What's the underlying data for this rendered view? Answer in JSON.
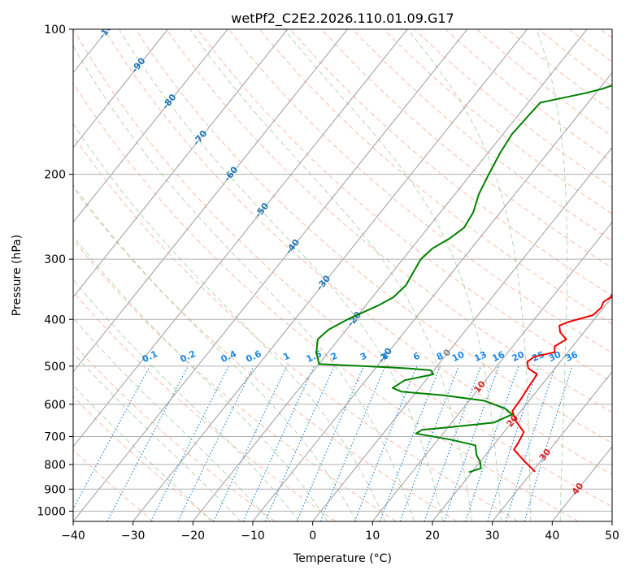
{
  "chart_data": {
    "type": "line",
    "title": "wetPf2_C2E2.2026.110.01.09.G17",
    "xlabel": "Temperature (°C)",
    "ylabel": "Pressure (hPa)",
    "xlim": [
      -40,
      50
    ],
    "ylim_hpa": [
      1050,
      100
    ],
    "x_ticks": [
      "−40",
      "−30",
      "−20",
      "−10",
      "0",
      "10",
      "20",
      "30",
      "40",
      "50"
    ],
    "x_tick_values": [
      -40,
      -30,
      -20,
      -10,
      0,
      10,
      20,
      30,
      40,
      50
    ],
    "y_ticks": [
      "100",
      "200",
      "300",
      "400",
      "500",
      "600",
      "700",
      "800",
      "900",
      "1000"
    ],
    "y_tick_values": [
      100,
      200,
      300,
      400,
      500,
      600,
      700,
      800,
      900,
      1000
    ],
    "grid": true,
    "colors": {
      "temperature": "#ee0000",
      "dewpoint": "#008000",
      "isotherm": "#9a9a9a",
      "dry_adiabat": "#ffa080",
      "moist_adiabat": "#80c080",
      "mixing_ratio": "#1e88e5",
      "zero_isotherm_label": "#808080",
      "warm_label": "#d62728",
      "cold_label": "#1f77b4",
      "mixing_label": "#1e88e5"
    },
    "series": [
      {
        "name": "Temperature",
        "points": [
          [
            1.5,
            100
          ],
          [
            -0.5,
            108
          ],
          [
            -3,
            118
          ],
          [
            -4,
            125
          ],
          [
            -3.8,
            135
          ],
          [
            -3.2,
            150
          ],
          [
            -2.5,
            160
          ],
          [
            0,
            175
          ],
          [
            3,
            190
          ],
          [
            5.5,
            205
          ],
          [
            8,
            225
          ],
          [
            10.5,
            245
          ],
          [
            12.5,
            265
          ],
          [
            14.5,
            288
          ],
          [
            16,
            308
          ],
          [
            17,
            322
          ],
          [
            18.5,
            337
          ],
          [
            19.5,
            350
          ],
          [
            19.8,
            360
          ],
          [
            19.2,
            368
          ],
          [
            19.6,
            378
          ],
          [
            19.2,
            392
          ],
          [
            16,
            405
          ],
          [
            15,
            412
          ],
          [
            16,
            425
          ],
          [
            18,
            440
          ],
          [
            17,
            455
          ],
          [
            17.8,
            468
          ],
          [
            15,
            478
          ],
          [
            14.5,
            490
          ],
          [
            15.5,
            505
          ],
          [
            17.8,
            520
          ],
          [
            18,
            545
          ],
          [
            18.4,
            585
          ],
          [
            18.6,
            620
          ],
          [
            20.5,
            650
          ],
          [
            23.3,
            685
          ],
          [
            23.8,
            720
          ],
          [
            24,
            745
          ],
          [
            27.5,
            790
          ],
          [
            30.5,
            828
          ]
        ]
      },
      {
        "name": "Dewpoint",
        "points": [
          [
            1.5,
            100
          ],
          [
            1,
            108
          ],
          [
            -1.5,
            118
          ],
          [
            -5,
            125
          ],
          [
            -9.5,
            133
          ],
          [
            -12,
            136
          ],
          [
            -16,
            140
          ],
          [
            -18,
            142
          ],
          [
            -18.2,
            150
          ],
          [
            -18.5,
            165
          ],
          [
            -18,
            180
          ],
          [
            -17,
            200
          ],
          [
            -16,
            220
          ],
          [
            -14.5,
            240
          ],
          [
            -14,
            258
          ],
          [
            -15,
            272
          ],
          [
            -16.5,
            285
          ],
          [
            -17,
            300
          ],
          [
            -16.5,
            320
          ],
          [
            -16,
            340
          ],
          [
            -16.5,
            360
          ],
          [
            -18,
            375
          ],
          [
            -21,
            398
          ],
          [
            -23,
            420
          ],
          [
            -23.5,
            440
          ],
          [
            -22,
            468
          ],
          [
            -20,
            495
          ],
          [
            -8,
            503
          ],
          [
            -4,
            506
          ],
          [
            -0.5,
            510
          ],
          [
            0.5,
            520
          ],
          [
            -3.5,
            535
          ],
          [
            -4.5,
            555
          ],
          [
            -2.5,
            565
          ],
          [
            5,
            575
          ],
          [
            12.5,
            590
          ],
          [
            17,
            612
          ],
          [
            19,
            630
          ],
          [
            17,
            655
          ],
          [
            10,
            670
          ],
          [
            6,
            678
          ],
          [
            5.5,
            690
          ],
          [
            12,
            710
          ],
          [
            17,
            730
          ],
          [
            18.5,
            765
          ],
          [
            20,
            790
          ],
          [
            21,
            815
          ],
          [
            20,
            825
          ],
          [
            19.5,
            830
          ]
        ]
      }
    ],
    "mixing_ratio_labels": [
      "0.1",
      "0.2",
      "0.4",
      "0.6",
      "1",
      "1.5",
      "2",
      "3",
      "4",
      "6",
      "8",
      "10",
      "13",
      "16",
      "20",
      "25",
      "30",
      "36"
    ],
    "mixing_ratio_values": [
      0.1,
      0.2,
      0.4,
      0.6,
      1,
      1.5,
      2,
      3,
      4,
      6,
      8,
      10,
      13,
      16,
      20,
      25,
      30,
      36
    ],
    "isotherm_labels": [
      "-100",
      "-90",
      "-80",
      "-70",
      "-60",
      "-50",
      "-40",
      "-30",
      "-20",
      "-10",
      "0",
      "10",
      "20",
      "30",
      "40"
    ],
    "isotherm_label_values": [
      -100,
      -90,
      -80,
      -70,
      -60,
      -50,
      -40,
      -30,
      -20,
      -10,
      0,
      10,
      20,
      30,
      40
    ]
  }
}
